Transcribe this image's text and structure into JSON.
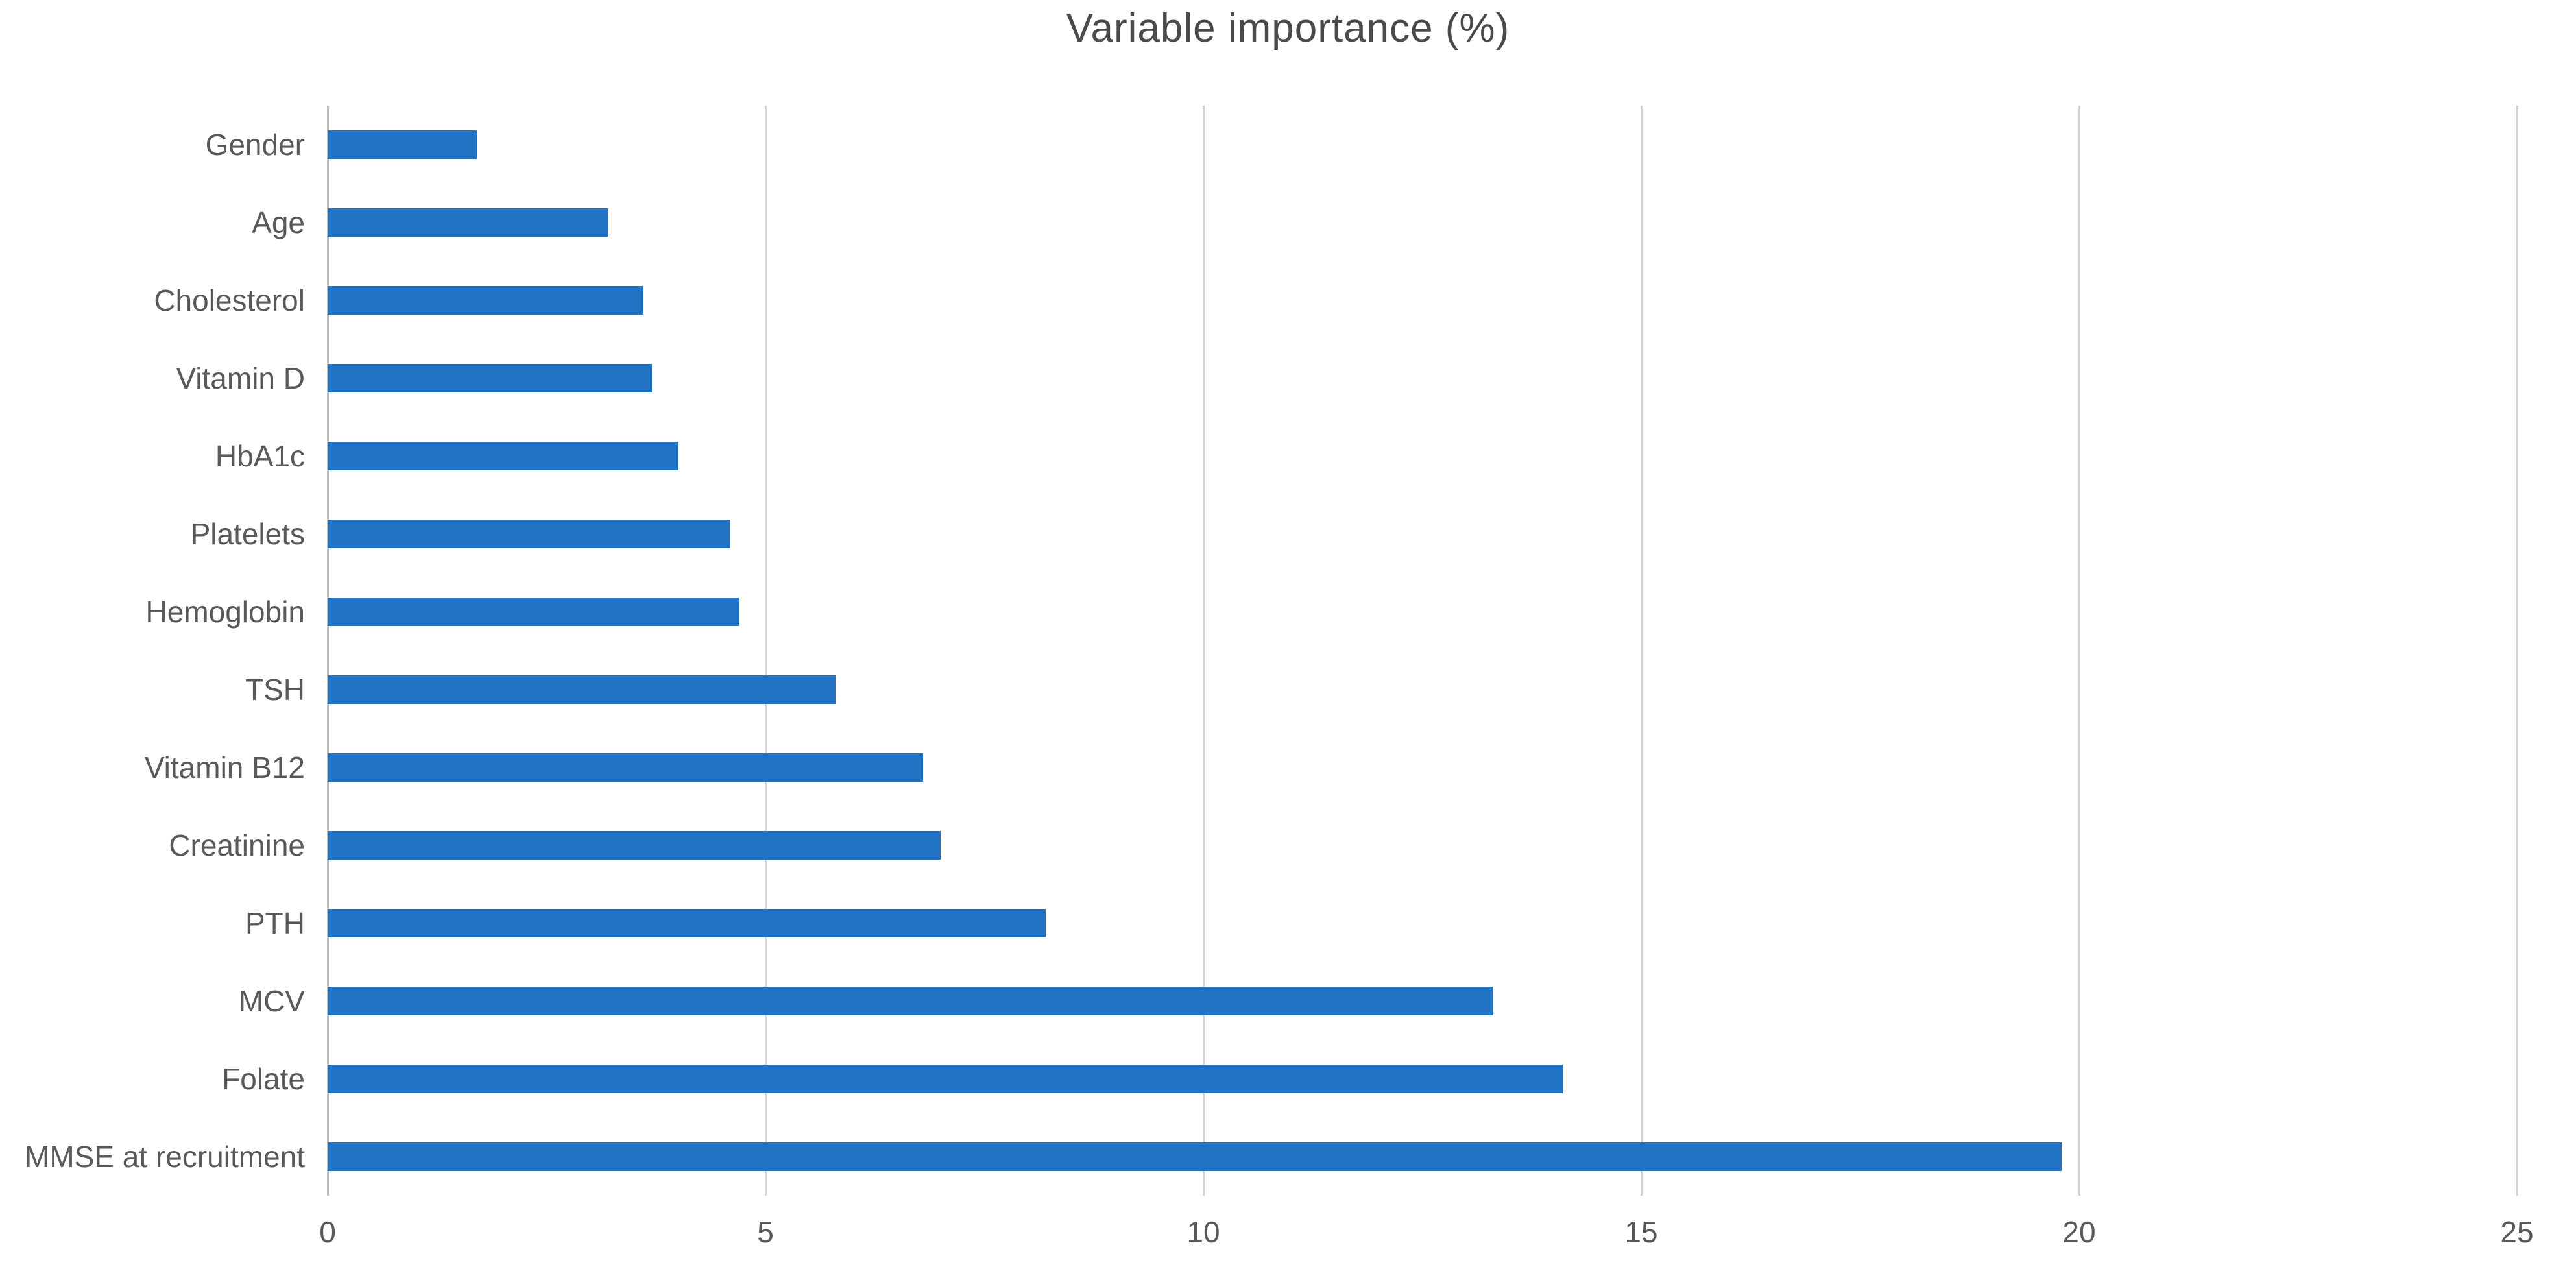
{
  "chart_data": {
    "type": "bar",
    "orientation": "horizontal",
    "title": "Variable importance (%)",
    "categories": [
      "Gender",
      "Age",
      "Cholesterol",
      "Vitamin D",
      "HbA1c",
      "Platelets",
      "Hemoglobin",
      "TSH",
      "Vitamin B12",
      "Creatinine",
      "PTH",
      "MCV",
      "Folate",
      "MMSE at recruitment"
    ],
    "values": [
      1.7,
      3.2,
      3.6,
      3.7,
      4.0,
      4.6,
      4.7,
      5.8,
      6.8,
      7.0,
      8.2,
      13.3,
      14.1,
      19.8
    ],
    "xlabel": "",
    "ylabel": "",
    "x_ticks": [
      0,
      5,
      10,
      15,
      20,
      25
    ],
    "xlim": [
      0,
      25
    ],
    "grid": true,
    "legend": false,
    "category_order": "top-to-bottom",
    "colors": {
      "bar": "#2272C3",
      "gridline": "#D4D4D4",
      "zero_axis_line": "#BDBDBD",
      "title_text": "#4A4A4A",
      "label_text": "#595959",
      "background": "#FFFFFF"
    }
  }
}
